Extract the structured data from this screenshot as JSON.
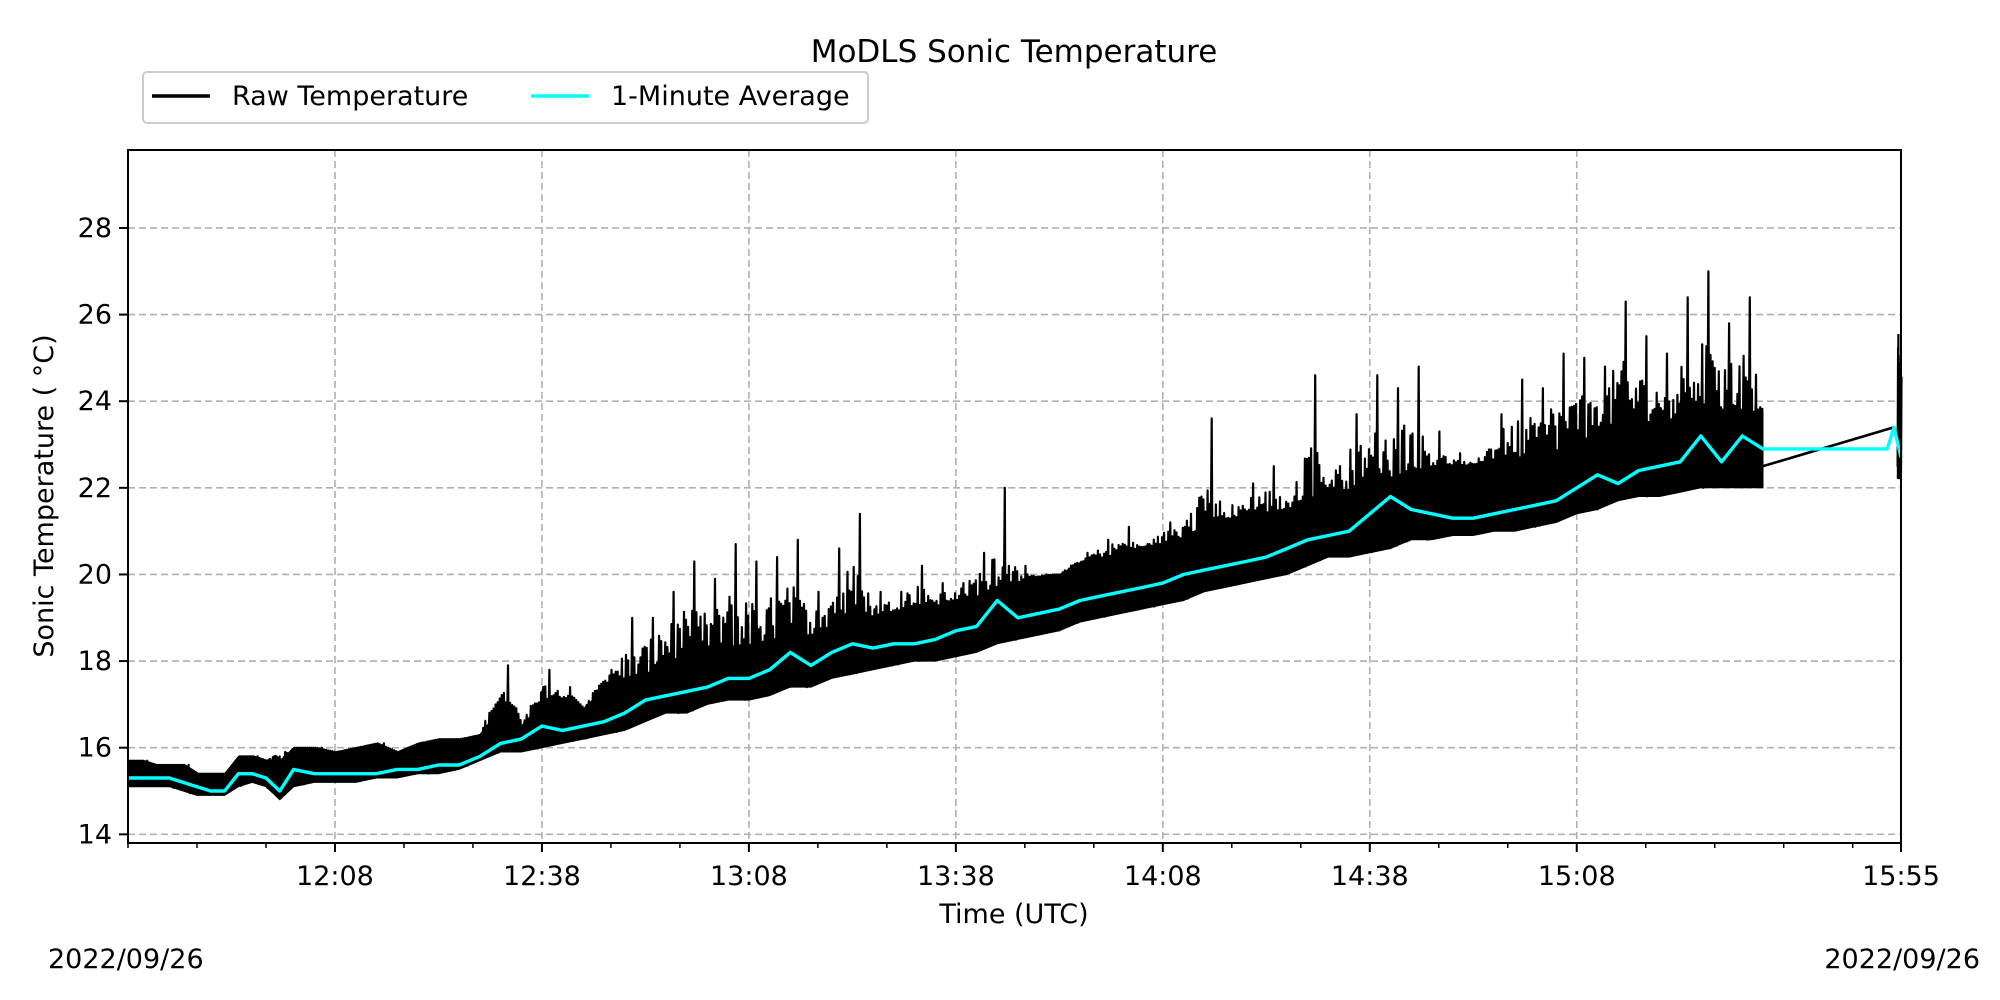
{
  "chart_data": {
    "type": "line",
    "title": "MoDLS Sonic Temperature",
    "xlabel": "Time (UTC)",
    "ylabel": "Sonic Temperature ( °C)",
    "date_left": "2022/09/26",
    "date_right": "2022/09/26",
    "x_unit": "time of day (UTC, HH:MM)",
    "xlim": [
      "11:38",
      "15:55"
    ],
    "ylim": [
      13.8,
      29.8
    ],
    "x_ticks": [
      "12:08",
      "12:38",
      "13:08",
      "13:38",
      "14:08",
      "14:38",
      "15:08",
      "15:55"
    ],
    "y_ticks": [
      14,
      16,
      18,
      20,
      22,
      24,
      26,
      28
    ],
    "grid": true,
    "legend_placement": "top-left, above axes",
    "series": [
      {
        "name": "Raw Temperature",
        "color": "#000000",
        "style": "noisy band",
        "x": [
          "11:38",
          "11:40",
          "11:42",
          "11:44",
          "11:46",
          "11:48",
          "11:50",
          "11:52",
          "11:54",
          "11:56",
          "11:58",
          "12:00",
          "12:02",
          "12:05",
          "12:08",
          "12:11",
          "12:14",
          "12:17",
          "12:20",
          "12:23",
          "12:26",
          "12:29",
          "12:32",
          "12:35",
          "12:38",
          "12:41",
          "12:44",
          "12:47",
          "12:50",
          "12:53",
          "12:56",
          "12:59",
          "13:02",
          "13:05",
          "13:08",
          "13:11",
          "13:14",
          "13:17",
          "13:20",
          "13:23",
          "13:26",
          "13:29",
          "13:32",
          "13:35",
          "13:38",
          "13:41",
          "13:44",
          "13:47",
          "13:50",
          "13:53",
          "13:56",
          "13:59",
          "14:02",
          "14:05",
          "14:08",
          "14:11",
          "14:14",
          "14:17",
          "14:20",
          "14:23",
          "14:26",
          "14:29",
          "14:32",
          "14:35",
          "14:38",
          "14:41",
          "14:44",
          "14:47",
          "14:50",
          "14:53",
          "14:56",
          "14:59",
          "15:02",
          "15:05",
          "15:08",
          "15:11",
          "15:14",
          "15:17",
          "15:20",
          "15:23",
          "15:26",
          "15:29",
          "15:32",
          "15:35"
        ],
        "low": [
          15.1,
          15.1,
          15.1,
          15.1,
          15.0,
          14.9,
          14.9,
          14.9,
          15.1,
          15.2,
          15.1,
          14.8,
          15.1,
          15.2,
          15.2,
          15.2,
          15.3,
          15.3,
          15.4,
          15.4,
          15.5,
          15.7,
          15.9,
          15.9,
          16.0,
          16.1,
          16.2,
          16.3,
          16.4,
          16.6,
          16.8,
          16.8,
          17.0,
          17.1,
          17.1,
          17.2,
          17.4,
          17.4,
          17.6,
          17.7,
          17.8,
          17.9,
          18.0,
          18.0,
          18.1,
          18.2,
          18.4,
          18.5,
          18.6,
          18.7,
          18.9,
          19.0,
          19.1,
          19.2,
          19.3,
          19.4,
          19.6,
          19.7,
          19.8,
          19.9,
          20.0,
          20.2,
          20.4,
          20.4,
          20.5,
          20.6,
          20.8,
          20.8,
          20.9,
          20.9,
          21.0,
          21.0,
          21.1,
          21.2,
          21.4,
          21.5,
          21.7,
          21.8,
          21.8,
          21.9,
          22.0,
          22.0,
          22.0,
          22.0
        ],
        "high": [
          15.7,
          15.7,
          15.6,
          15.6,
          15.6,
          15.4,
          15.4,
          15.4,
          15.8,
          15.8,
          15.7,
          15.9,
          16.0,
          16.0,
          15.9,
          16.0,
          16.1,
          15.9,
          16.1,
          16.2,
          16.2,
          16.3,
          17.9,
          16.5,
          17.8,
          17.4,
          16.9,
          17.8,
          19.0,
          19.0,
          19.6,
          20.3,
          19.9,
          20.7,
          20.3,
          20.4,
          20.8,
          19.6,
          20.6,
          21.4,
          19.6,
          19.6,
          20.2,
          19.8,
          19.8,
          20.5,
          22.0,
          20.2,
          20.0,
          20.0,
          20.5,
          20.8,
          21.1,
          20.7,
          21.2,
          21.4,
          23.6,
          21.6,
          22.1,
          22.5,
          21.8,
          24.6,
          22.4,
          23.7,
          24.6,
          24.3,
          24.8,
          23.3,
          22.8,
          22.6,
          23.7,
          24.5,
          24.3,
          25.1,
          25.0,
          24.8,
          26.3,
          25.5,
          25.1,
          26.4,
          27.0,
          25.8,
          26.4,
          25.0
        ]
      },
      {
        "name": "Raw Temperature",
        "color": "#000000",
        "style": "noisy band (segment after gap)",
        "x": [
          "15:54:30",
          "15:55"
        ],
        "low": [
          22.2,
          22.2
        ],
        "high": [
          25.8,
          24.7
        ]
      },
      {
        "name": "Raw Temperature",
        "color": "#000000",
        "style": "gap connector line",
        "x": [
          "15:35",
          "15:54"
        ],
        "y": [
          22.5,
          23.4
        ]
      },
      {
        "name": "1-Minute Average",
        "color": "#00ffff",
        "x": [
          "11:38",
          "11:40",
          "11:42",
          "11:44",
          "11:46",
          "11:48",
          "11:50",
          "11:52",
          "11:54",
          "11:56",
          "11:58",
          "12:00",
          "12:02",
          "12:05",
          "12:08",
          "12:11",
          "12:14",
          "12:17",
          "12:20",
          "12:23",
          "12:26",
          "12:29",
          "12:32",
          "12:35",
          "12:38",
          "12:41",
          "12:44",
          "12:47",
          "12:50",
          "12:53",
          "12:56",
          "12:59",
          "13:02",
          "13:05",
          "13:08",
          "13:11",
          "13:14",
          "13:17",
          "13:20",
          "13:23",
          "13:26",
          "13:29",
          "13:32",
          "13:35",
          "13:38",
          "13:41",
          "13:44",
          "13:47",
          "13:50",
          "13:53",
          "13:56",
          "13:59",
          "14:02",
          "14:05",
          "14:08",
          "14:11",
          "14:14",
          "14:17",
          "14:20",
          "14:23",
          "14:26",
          "14:29",
          "14:32",
          "14:35",
          "14:38",
          "14:41",
          "14:44",
          "14:47",
          "14:50",
          "14:53",
          "14:56",
          "14:59",
          "15:02",
          "15:05",
          "15:08",
          "15:11",
          "15:14",
          "15:17",
          "15:20",
          "15:23",
          "15:26",
          "15:29",
          "15:32",
          "15:35",
          "15:40",
          "15:45",
          "15:50",
          "15:53",
          "15:54",
          "15:55"
        ],
        "y": [
          15.3,
          15.3,
          15.3,
          15.3,
          15.2,
          15.1,
          15.0,
          15.0,
          15.4,
          15.4,
          15.3,
          15.0,
          15.5,
          15.4,
          15.4,
          15.4,
          15.4,
          15.5,
          15.5,
          15.6,
          15.6,
          15.8,
          16.1,
          16.2,
          16.5,
          16.4,
          16.5,
          16.6,
          16.8,
          17.1,
          17.2,
          17.3,
          17.4,
          17.6,
          17.6,
          17.8,
          18.2,
          17.9,
          18.2,
          18.4,
          18.3,
          18.4,
          18.4,
          18.5,
          18.7,
          18.8,
          19.4,
          19.0,
          19.1,
          19.2,
          19.4,
          19.5,
          19.6,
          19.7,
          19.8,
          20.0,
          20.1,
          20.2,
          20.3,
          20.4,
          20.6,
          20.8,
          20.9,
          21.0,
          21.4,
          21.8,
          21.5,
          21.4,
          21.3,
          21.3,
          21.4,
          21.5,
          21.6,
          21.7,
          22.0,
          22.3,
          22.1,
          22.4,
          22.5,
          22.6,
          23.2,
          22.6,
          23.2,
          22.9,
          22.9,
          22.9,
          22.9,
          22.9,
          23.4,
          22.7
        ]
      }
    ]
  }
}
